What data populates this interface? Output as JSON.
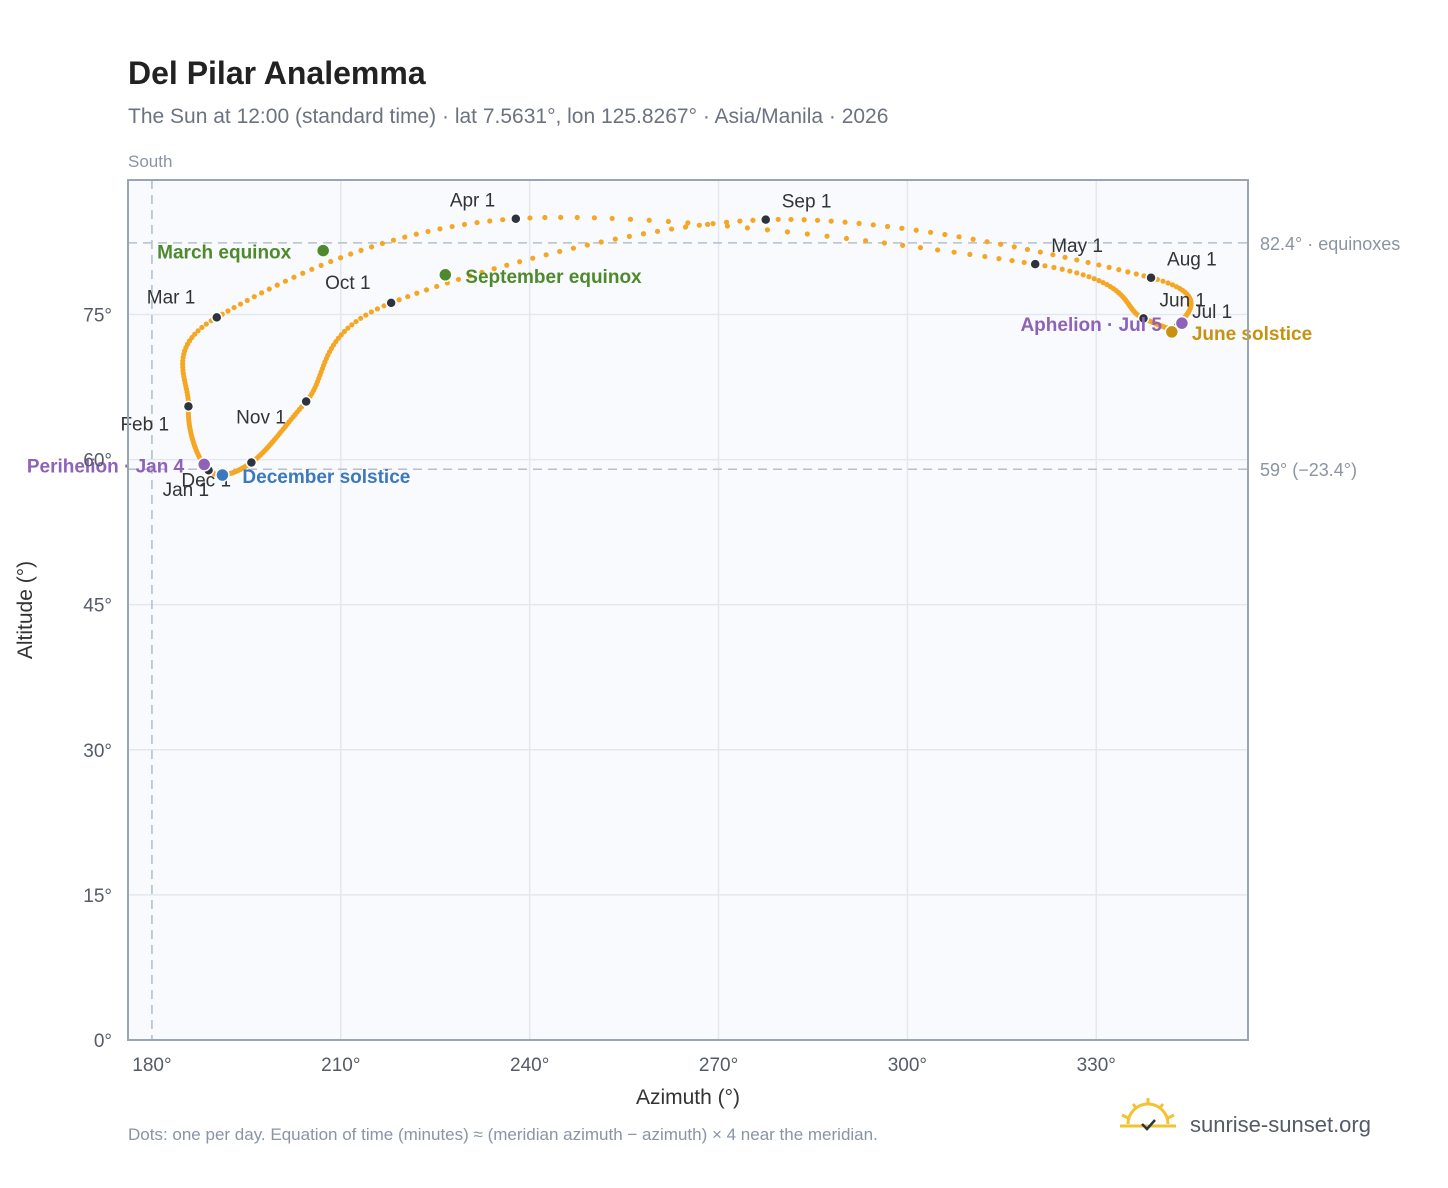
{
  "header": {
    "title": "Del Pilar Analemma",
    "subtitle": "The Sun at 12:00 (standard time) · lat 7.5631°, lon 125.8267° · Asia/Manila · 2026"
  },
  "direction_label": "South",
  "footer": {
    "note": "Dots: one per day. Equation of time (minutes) ≈ (meridian azimuth − azimuth) × 4 near the meridian.",
    "brand": "sunrise-sunset.org"
  },
  "colors": {
    "curve": "#f5a623",
    "month_marker": "#2d3440",
    "equinox": "#4e8a2c",
    "june_solstice": "#c89211",
    "december_solstice": "#3a78bf",
    "perihelion_aphelion": "#8e62b8",
    "plot_bg": "#f8fafd",
    "grid": "#e3e8ef",
    "frame": "#9aa5b4",
    "ref_line": "#b4c0ce"
  },
  "chart_data": {
    "type": "scatter",
    "xlabel": "Azimuth (°)",
    "ylabel": "Altitude (°)",
    "xlim": [
      176.2,
      354.1
    ],
    "ylim": [
      0,
      88.9
    ],
    "x_ticks": [
      180,
      210,
      240,
      270,
      300,
      330
    ],
    "x_tick_labels": [
      "180°",
      "210°",
      "240°",
      "270°",
      "300°",
      "330°"
    ],
    "y_ticks": [
      0,
      15,
      30,
      45,
      60,
      75
    ],
    "y_tick_labels": [
      "0°",
      "15°",
      "30°",
      "45°",
      "60°",
      "75°"
    ],
    "grid": true,
    "reference_lines": [
      {
        "axis": "y",
        "value": 82.4,
        "label": "82.4° · equinoxes"
      },
      {
        "axis": "y",
        "value": 59.0,
        "label": "59° (−23.4°)"
      },
      {
        "axis": "x",
        "value": 180,
        "label": ""
      }
    ],
    "month_points": [
      {
        "label": "Jan 1",
        "az": 189.0,
        "alt": 58.9
      },
      {
        "label": "Feb 1",
        "az": 185.8,
        "alt": 65.5
      },
      {
        "label": "Mar 1",
        "az": 190.3,
        "alt": 74.7
      },
      {
        "label": "Apr 1",
        "az": 237.8,
        "alt": 84.9
      },
      {
        "label": "May 1",
        "az": 320.3,
        "alt": 80.2
      },
      {
        "label": "Jun 1",
        "az": 337.5,
        "alt": 74.6
      },
      {
        "label": "Jul 1",
        "az": 343.0,
        "alt": 73.8
      },
      {
        "label": "Aug 1",
        "az": 338.7,
        "alt": 78.8
      },
      {
        "label": "Sep 1",
        "az": 277.5,
        "alt": 84.8
      },
      {
        "label": "Oct 1",
        "az": 218.0,
        "alt": 76.2
      },
      {
        "label": "Nov 1",
        "az": 204.5,
        "alt": 66.0
      },
      {
        "label": "Dec 1",
        "az": 195.8,
        "alt": 59.7
      }
    ],
    "events": [
      {
        "label": "March equinox",
        "az": 207.2,
        "alt": 81.6,
        "color_key": "equinox"
      },
      {
        "label": "September equinox",
        "az": 226.6,
        "alt": 79.1,
        "color_key": "equinox"
      },
      {
        "label": "June solstice",
        "az": 342.0,
        "alt": 73.2,
        "color_key": "june_solstice"
      },
      {
        "label": "December solstice",
        "az": 191.2,
        "alt": 58.4,
        "color_key": "december_solstice"
      },
      {
        "label": "Perihelion · Jan 4",
        "az": 188.3,
        "alt": 59.5,
        "color_key": "perihelion_aphelion"
      },
      {
        "label": "Aphelion · Jul 5",
        "az": 343.6,
        "alt": 74.1,
        "color_key": "perihelion_aphelion"
      }
    ]
  }
}
